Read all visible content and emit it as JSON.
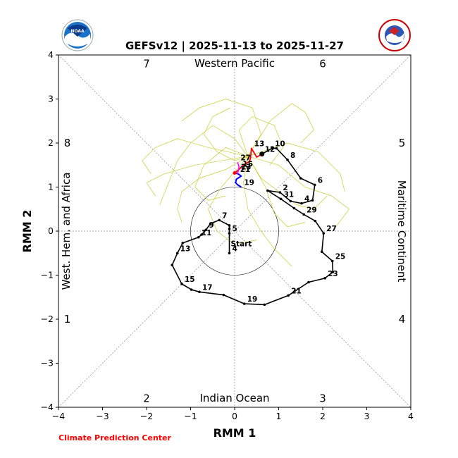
{
  "chart_data": {
    "type": "line",
    "title": "GEFSv12 | 2025-11-13 to 2025-11-27",
    "xlabel": "RMM 1",
    "ylabel": "RMM 2",
    "xlim": [
      -4,
      4
    ],
    "ylim": [
      -4,
      4
    ],
    "xticks": [
      -4,
      -3,
      -2,
      -1,
      0,
      1,
      2,
      3,
      4
    ],
    "yticks": [
      -4,
      -3,
      -2,
      -1,
      0,
      1,
      2,
      3,
      4
    ],
    "tick_labels": [
      "−4",
      "−3",
      "−2",
      "−1",
      "0",
      "1",
      "2",
      "3",
      "4"
    ],
    "regions": {
      "top": "Western Pacific",
      "bottom": "Indian Ocean",
      "left": "West. Hem. and Africa",
      "right": "Maritime Continent"
    },
    "phases": [
      {
        "label": "1",
        "x": -3.8,
        "y": -2.0
      },
      {
        "label": "2",
        "x": -2.0,
        "y": -3.8
      },
      {
        "label": "3",
        "x": 2.0,
        "y": -3.8
      },
      {
        "label": "4",
        "x": 3.8,
        "y": -2.0
      },
      {
        "label": "5",
        "x": 3.8,
        "y": 2.0
      },
      {
        "label": "6",
        "x": 2.0,
        "y": 3.8
      },
      {
        "label": "7",
        "x": -2.0,
        "y": 3.8
      },
      {
        "label": "8",
        "x": -3.8,
        "y": 2.0
      }
    ],
    "observed": {
      "color": "#000000",
      "points": [
        {
          "x": -0.12,
          "y": -0.5,
          "label": "4"
        },
        {
          "x": -0.12,
          "y": -0.05,
          "label": "5"
        },
        {
          "x": -0.12,
          "y": 0.05,
          "label": ""
        },
        {
          "x": -0.12,
          "y": 0.13,
          "label": ""
        },
        {
          "x": -0.35,
          "y": 0.25,
          "label": "7"
        },
        {
          "x": -0.55,
          "y": 0.17,
          "label": ""
        },
        {
          "x": -0.65,
          "y": 0.03,
          "label": "9"
        },
        {
          "x": -0.75,
          "y": -0.08,
          "label": ""
        },
        {
          "x": -0.82,
          "y": -0.14,
          "label": "11"
        },
        {
          "x": -1.18,
          "y": -0.27,
          "label": ""
        },
        {
          "x": -1.3,
          "y": -0.5,
          "label": "13"
        },
        {
          "x": -1.42,
          "y": -0.77,
          "label": ""
        },
        {
          "x": -1.2,
          "y": -1.2,
          "label": "15"
        },
        {
          "x": -0.98,
          "y": -1.33,
          "label": ""
        },
        {
          "x": -0.8,
          "y": -1.38,
          "label": "17"
        },
        {
          "x": -0.25,
          "y": -1.45,
          "label": ""
        },
        {
          "x": 0.22,
          "y": -1.65,
          "label": "19"
        },
        {
          "x": 0.68,
          "y": -1.67,
          "label": ""
        },
        {
          "x": 1.22,
          "y": -1.46,
          "label": "21"
        },
        {
          "x": 1.68,
          "y": -1.16,
          "label": ""
        },
        {
          "x": 2.05,
          "y": -1.07,
          "label": "23"
        },
        {
          "x": 2.23,
          "y": -0.93,
          "label": ""
        },
        {
          "x": 2.22,
          "y": -0.68,
          "label": "25"
        },
        {
          "x": 1.98,
          "y": -0.47,
          "label": ""
        },
        {
          "x": 2.02,
          "y": -0.05,
          "label": "27"
        },
        {
          "x": 1.83,
          "y": 0.23,
          "label": ""
        },
        {
          "x": 1.57,
          "y": 0.38,
          "label": "29"
        },
        {
          "x": 1.35,
          "y": 0.52,
          "label": ""
        },
        {
          "x": 1.05,
          "y": 0.73,
          "label": "31"
        },
        {
          "x": 0.75,
          "y": 0.92,
          "label": ""
        },
        {
          "x": 1.03,
          "y": 0.88,
          "label": "2"
        },
        {
          "x": 1.27,
          "y": 0.68,
          "label": ""
        },
        {
          "x": 1.52,
          "y": 0.63,
          "label": "4"
        },
        {
          "x": 1.77,
          "y": 0.7,
          "label": ""
        },
        {
          "x": 1.82,
          "y": 1.05,
          "label": "6"
        },
        {
          "x": 1.5,
          "y": 1.2,
          "label": ""
        },
        {
          "x": 1.2,
          "y": 1.62,
          "label": "8"
        },
        {
          "x": 0.95,
          "y": 1.88,
          "label": ""
        },
        {
          "x": 0.85,
          "y": 1.88,
          "label": "10"
        },
        {
          "x": 0.62,
          "y": 1.75,
          "label": ""
        }
      ],
      "start_label": "Start",
      "start_index": 0
    },
    "forecast": {
      "color": "#ff0000",
      "points": [
        {
          "x": 0.62,
          "y": 1.75,
          "label": "12"
        },
        {
          "x": 0.5,
          "y": 1.68,
          "label": ""
        },
        {
          "x": 0.38,
          "y": 1.88,
          "label": "13"
        },
        {
          "x": 0.36,
          "y": 1.65,
          "label": ""
        },
        {
          "x": 0.33,
          "y": 1.58,
          "label": ""
        },
        {
          "x": 0.2,
          "y": 1.5,
          "label": ""
        },
        {
          "x": 0.12,
          "y": 1.42,
          "label": "15"
        },
        {
          "x": 0.05,
          "y": 1.36,
          "label": ""
        },
        {
          "x": 0.0,
          "y": 1.32,
          "label": ""
        }
      ]
    },
    "forecast_week2": {
      "color": "#0000ff",
      "points": [
        {
          "x": 0.0,
          "y": 1.32,
          "label": ""
        },
        {
          "x": 0.08,
          "y": 1.3,
          "label": ""
        },
        {
          "x": 0.15,
          "y": 1.25,
          "label": ""
        },
        {
          "x": 0.04,
          "y": 1.18,
          "label": ""
        },
        {
          "x": 0.02,
          "y": 1.1,
          "label": ""
        },
        {
          "x": 0.07,
          "y": 1.05,
          "label": ""
        },
        {
          "x": 0.15,
          "y": 1.0,
          "label": "19"
        }
      ]
    },
    "forecast_week3": {
      "color": "#ff00ff",
      "points": [
        {
          "x": 0.07,
          "y": 1.56,
          "label": "27"
        },
        {
          "x": 0.1,
          "y": 1.45,
          "label": ""
        },
        {
          "x": 0.08,
          "y": 1.35,
          "label": "23"
        },
        {
          "x": 0.06,
          "y": 1.3,
          "label": "21"
        }
      ]
    },
    "ensemble_color": "#cccc33",
    "ensemble": [
      [
        [
          0.3,
          1.7
        ],
        [
          0.0,
          2.1
        ],
        [
          -0.5,
          2.4
        ],
        [
          -1.0,
          2.0
        ],
        [
          -1.3,
          1.6
        ],
        [
          -1.5,
          1.1
        ],
        [
          -1.7,
          0.6
        ]
      ],
      [
        [
          0.3,
          1.7
        ],
        [
          0.6,
          2.2
        ],
        [
          0.4,
          2.8
        ],
        [
          -0.2,
          3.0
        ],
        [
          -0.8,
          2.8
        ],
        [
          -1.2,
          2.5
        ]
      ],
      [
        [
          0.3,
          1.7
        ],
        [
          1.0,
          1.5
        ],
        [
          1.6,
          1.0
        ],
        [
          2.2,
          0.8
        ],
        [
          2.6,
          0.5
        ],
        [
          2.3,
          0.1
        ]
      ],
      [
        [
          0.3,
          1.7
        ],
        [
          -0.2,
          1.4
        ],
        [
          -0.8,
          1.2
        ],
        [
          -1.2,
          0.9
        ],
        [
          -1.3,
          0.5
        ],
        [
          -1.2,
          0.2
        ]
      ],
      [
        [
          0.3,
          1.7
        ],
        [
          0.2,
          1.1
        ],
        [
          0.3,
          0.5
        ],
        [
          0.6,
          0.0
        ],
        [
          0.9,
          -0.4
        ],
        [
          1.3,
          -0.8
        ]
      ],
      [
        [
          0.3,
          1.7
        ],
        [
          -0.6,
          1.9
        ],
        [
          -1.3,
          2.1
        ],
        [
          -1.8,
          1.9
        ],
        [
          -2.1,
          1.6
        ],
        [
          -1.9,
          1.3
        ]
      ],
      [
        [
          0.3,
          1.7
        ],
        [
          0.8,
          2.5
        ],
        [
          1.3,
          2.9
        ],
        [
          1.6,
          2.7
        ],
        [
          1.8,
          2.3
        ],
        [
          1.5,
          2.0
        ]
      ],
      [
        [
          0.3,
          1.7
        ],
        [
          0.0,
          1.6
        ],
        [
          -0.4,
          1.8
        ],
        [
          -0.7,
          2.2
        ],
        [
          -0.5,
          2.6
        ],
        [
          -0.1,
          2.8
        ]
      ],
      [
        [
          0.3,
          1.7
        ],
        [
          0.6,
          1.2
        ],
        [
          1.0,
          0.9
        ],
        [
          1.4,
          0.6
        ],
        [
          1.8,
          0.5
        ],
        [
          2.1,
          0.8
        ]
      ],
      [
        [
          0.3,
          1.7
        ],
        [
          -0.3,
          1.0
        ],
        [
          -0.6,
          0.5
        ],
        [
          -0.4,
          0.0
        ],
        [
          0.0,
          -0.3
        ],
        [
          0.5,
          -0.2
        ]
      ],
      [
        [
          0.3,
          1.7
        ],
        [
          1.2,
          2.0
        ],
        [
          1.9,
          1.8
        ],
        [
          2.4,
          1.3
        ],
        [
          2.5,
          0.9
        ]
      ],
      [
        [
          0.3,
          1.7
        ],
        [
          -0.9,
          1.5
        ],
        [
          -1.6,
          1.3
        ],
        [
          -2.0,
          1.1
        ],
        [
          -1.8,
          0.8
        ]
      ],
      [
        [
          0.3,
          1.7
        ],
        [
          0.1,
          2.3
        ],
        [
          0.4,
          2.6
        ],
        [
          0.9,
          2.4
        ],
        [
          1.1,
          1.9
        ],
        [
          0.8,
          1.5
        ]
      ],
      [
        [
          0.3,
          1.7
        ],
        [
          -0.2,
          1.9
        ],
        [
          -0.7,
          1.5
        ],
        [
          -0.9,
          1.0
        ],
        [
          -0.6,
          0.7
        ],
        [
          -0.2,
          0.8
        ]
      ],
      [
        [
          0.3,
          1.7
        ],
        [
          0.7,
          1.0
        ],
        [
          0.9,
          0.4
        ],
        [
          1.2,
          0.1
        ],
        [
          1.6,
          0.2
        ]
      ]
    ],
    "circle_radius": 1
  },
  "credit": "Climate Prediction Center",
  "logos": {
    "left": "noaa-logo",
    "left_text": "NOAA",
    "right": "nws-logo",
    "right_text": "NATIONAL WEATHER SERVICE"
  }
}
